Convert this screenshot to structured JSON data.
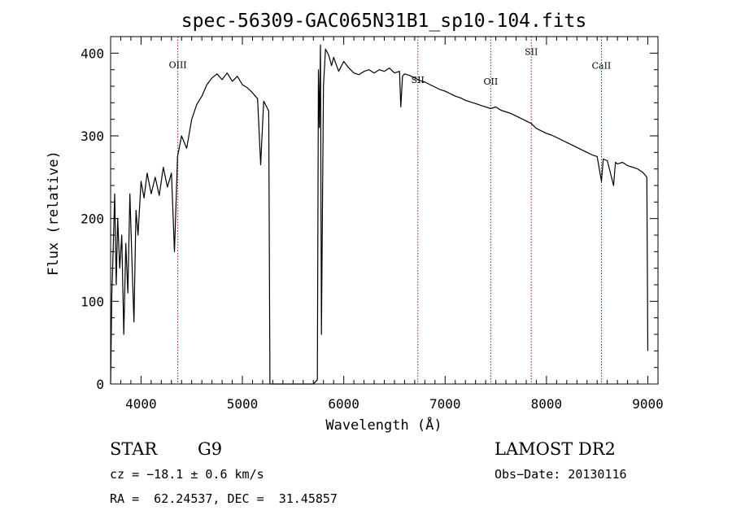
{
  "chart_data": {
    "type": "line",
    "title": "spec-56309-GAC065N31B1_sp10-104.fits",
    "xlabel": "Wavelength (Å)",
    "ylabel": "Flux (relative)",
    "xlim": [
      3700,
      9100
    ],
    "ylim": [
      0,
      420
    ],
    "x_ticks": [
      4000,
      5000,
      6000,
      7000,
      8000,
      9000
    ],
    "y_ticks": [
      0,
      100,
      200,
      300,
      400
    ],
    "grid": false,
    "line_color": "#000000",
    "marker_color": "#8b1a1a",
    "spectral_lines": [
      {
        "name": "OIII",
        "wavelength": 4363,
        "label_flux": 382
      },
      {
        "name": "SII",
        "wavelength": 6731,
        "label_flux": 364
      },
      {
        "name": "OII",
        "wavelength": 7450,
        "label_flux": 362
      },
      {
        "name": "SII",
        "wavelength": 7850,
        "label_flux": 398
      },
      {
        "name": "CaII",
        "wavelength": 8542,
        "label_flux": 381
      }
    ],
    "series": [
      {
        "values": [
          [
            3700,
            0
          ],
          [
            3712,
            110
          ],
          [
            3725,
            160
          ],
          [
            3740,
            230
          ],
          [
            3755,
            120
          ],
          [
            3770,
            200
          ],
          [
            3790,
            140
          ],
          [
            3810,
            180
          ],
          [
            3830,
            60
          ],
          [
            3850,
            170
          ],
          [
            3870,
            110
          ],
          [
            3890,
            230
          ],
          [
            3910,
            150
          ],
          [
            3930,
            75
          ],
          [
            3950,
            210
          ],
          [
            3970,
            180
          ],
          [
            4000,
            245
          ],
          [
            4030,
            225
          ],
          [
            4060,
            255
          ],
          [
            4100,
            230
          ],
          [
            4140,
            250
          ],
          [
            4180,
            228
          ],
          [
            4220,
            262
          ],
          [
            4260,
            238
          ],
          [
            4300,
            255
          ],
          [
            4330,
            160
          ],
          [
            4360,
            275
          ],
          [
            4400,
            300
          ],
          [
            4450,
            285
          ],
          [
            4500,
            320
          ],
          [
            4550,
            338
          ],
          [
            4600,
            348
          ],
          [
            4650,
            362
          ],
          [
            4700,
            370
          ],
          [
            4750,
            375
          ],
          [
            4800,
            368
          ],
          [
            4850,
            376
          ],
          [
            4900,
            366
          ],
          [
            4950,
            372
          ],
          [
            5000,
            362
          ],
          [
            5050,
            358
          ],
          [
            5100,
            352
          ],
          [
            5150,
            345
          ],
          [
            5180,
            265
          ],
          [
            5210,
            342
          ],
          [
            5240,
            335
          ],
          [
            5260,
            330
          ],
          [
            5272,
            0
          ],
          [
            5700,
            0
          ],
          [
            5740,
            5
          ],
          [
            5750,
            380
          ],
          [
            5760,
            310
          ],
          [
            5770,
            410
          ],
          [
            5780,
            60
          ],
          [
            5800,
            360
          ],
          [
            5820,
            405
          ],
          [
            5850,
            398
          ],
          [
            5880,
            385
          ],
          [
            5900,
            395
          ],
          [
            5950,
            378
          ],
          [
            6000,
            390
          ],
          [
            6050,
            382
          ],
          [
            6100,
            376
          ],
          [
            6150,
            374
          ],
          [
            6200,
            378
          ],
          [
            6250,
            380
          ],
          [
            6300,
            376
          ],
          [
            6350,
            380
          ],
          [
            6400,
            378
          ],
          [
            6450,
            382
          ],
          [
            6500,
            376
          ],
          [
            6550,
            378
          ],
          [
            6563,
            335
          ],
          [
            6580,
            372
          ],
          [
            6600,
            375
          ],
          [
            6650,
            373
          ],
          [
            6700,
            370
          ],
          [
            6750,
            367
          ],
          [
            6800,
            365
          ],
          [
            6850,
            362
          ],
          [
            6900,
            359
          ],
          [
            6950,
            356
          ],
          [
            7000,
            354
          ],
          [
            7050,
            351
          ],
          [
            7100,
            348
          ],
          [
            7150,
            346
          ],
          [
            7200,
            343
          ],
          [
            7250,
            341
          ],
          [
            7300,
            339
          ],
          [
            7350,
            337
          ],
          [
            7400,
            335
          ],
          [
            7450,
            333
          ],
          [
            7500,
            335
          ],
          [
            7550,
            331
          ],
          [
            7600,
            329
          ],
          [
            7650,
            327
          ],
          [
            7700,
            324
          ],
          [
            7750,
            321
          ],
          [
            7800,
            318
          ],
          [
            7850,
            315
          ],
          [
            7900,
            309
          ],
          [
            7950,
            306
          ],
          [
            8000,
            303
          ],
          [
            8050,
            301
          ],
          [
            8100,
            298
          ],
          [
            8150,
            295
          ],
          [
            8200,
            292
          ],
          [
            8250,
            289
          ],
          [
            8300,
            286
          ],
          [
            8350,
            283
          ],
          [
            8400,
            280
          ],
          [
            8450,
            277
          ],
          [
            8500,
            275
          ],
          [
            8542,
            245
          ],
          [
            8560,
            272
          ],
          [
            8600,
            270
          ],
          [
            8662,
            240
          ],
          [
            8680,
            268
          ],
          [
            8700,
            266
          ],
          [
            8750,
            268
          ],
          [
            8800,
            264
          ],
          [
            8850,
            262
          ],
          [
            8900,
            260
          ],
          [
            8950,
            256
          ],
          [
            8990,
            250
          ],
          [
            9000,
            40
          ]
        ]
      }
    ]
  },
  "info": {
    "class_label": "STAR",
    "subclass_label": "G9",
    "survey": "LAMOST DR2",
    "cz_line": "cz = −18.1 ± 0.6 km/s",
    "obs_date_line": "Obs−Date: 20130116",
    "radec_line": "RA =  62.24537, DEC =  31.45857"
  }
}
